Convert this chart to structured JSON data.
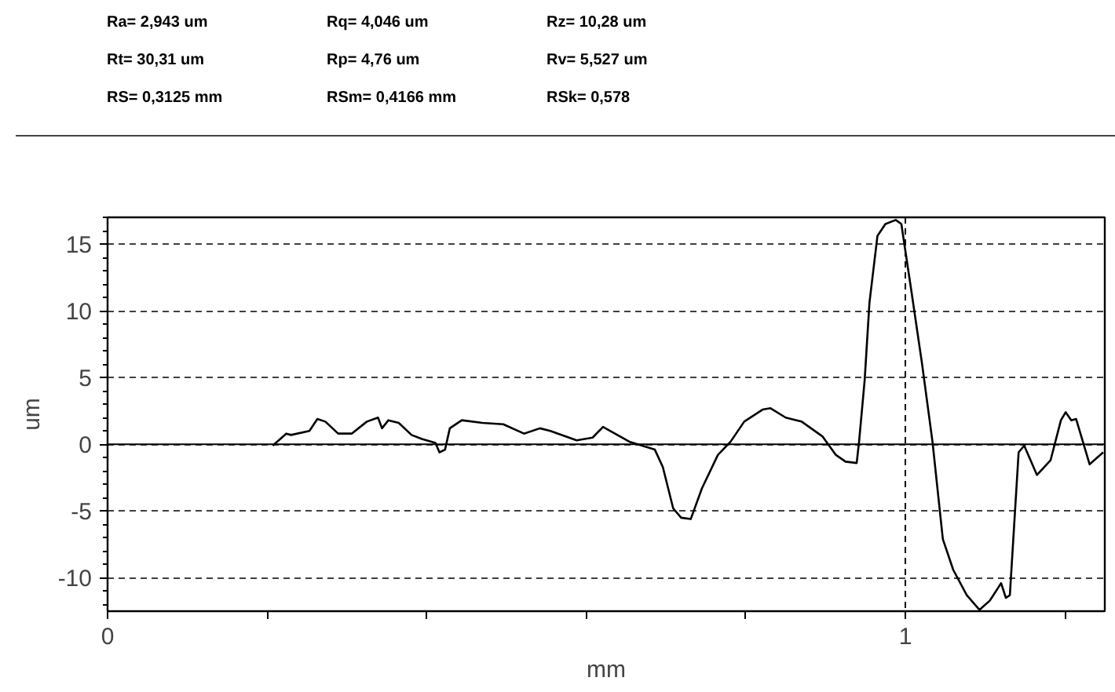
{
  "chart_data": {
    "type": "line",
    "annotations": [
      "Ra= 2,943 um",
      "Rq= 4,046 um",
      "Rz= 10,28 um",
      "Rt= 30,31 um",
      "Rp= 4,76 um",
      "Rv= 5,527 um",
      "RS= 0,3125  mm",
      "RSm= 0,4166  mm",
      "RSk= 0,578"
    ],
    "xlabel": "mm",
    "ylabel": "um",
    "xlim": [
      0,
      1.25
    ],
    "ylim": [
      -12.5,
      17
    ],
    "xticks": [
      0,
      {
        "value": 0.2,
        "label": null
      },
      {
        "value": 0.4,
        "label": null
      },
      {
        "value": 0.6,
        "label": null
      },
      {
        "value": 0.8,
        "label": null
      },
      1,
      {
        "value": 1.2,
        "label": null
      }
    ],
    "yticks": [
      -10,
      -5,
      0,
      5,
      10,
      15
    ],
    "grid": "y",
    "marker": "none",
    "line_style": "solid",
    "ref_lines": [
      {
        "axis": "y",
        "value": 0,
        "label": null,
        "color": "#000000",
        "line_style": "solid"
      },
      {
        "axis": "x",
        "value": 1,
        "label": null,
        "color": "#000000",
        "line_style": "dashed"
      }
    ],
    "series": [
      {
        "color": "#000000",
        "x": [
          0.207,
          0.224,
          0.23,
          0.253,
          0.263,
          0.273,
          0.289,
          0.306,
          0.325,
          0.339,
          0.344,
          0.352,
          0.365,
          0.381,
          0.394,
          0.411,
          0.416,
          0.423,
          0.429,
          0.444,
          0.47,
          0.496,
          0.522,
          0.542,
          0.555,
          0.588,
          0.608,
          0.621,
          0.654,
          0.686,
          0.696,
          0.709,
          0.719,
          0.731,
          0.745,
          0.765,
          0.781,
          0.798,
          0.821,
          0.831,
          0.85,
          0.87,
          0.896,
          0.913,
          0.925,
          0.939,
          0.942,
          0.949,
          0.955,
          0.965,
          0.975,
          0.988,
          0.995,
          1.008,
          1.021,
          1.034,
          1.047,
          1.06,
          1.077,
          1.093,
          1.106,
          1.12,
          1.126,
          1.131,
          1.142,
          1.149,
          1.165,
          1.182,
          1.195,
          1.201,
          1.208,
          1.214,
          1.231,
          1.248
        ],
        "values": [
          -0.1,
          0.8,
          0.7,
          1.0,
          1.9,
          1.7,
          0.8,
          0.8,
          1.7,
          2.0,
          1.2,
          1.8,
          1.6,
          0.7,
          0.4,
          0.1,
          -0.6,
          -0.4,
          1.2,
          1.8,
          1.6,
          1.5,
          0.8,
          1.2,
          1.0,
          0.3,
          0.5,
          1.3,
          0.2,
          -0.4,
          -1.7,
          -4.8,
          -5.5,
          -5.6,
          -3.3,
          -0.8,
          0.2,
          1.7,
          2.6,
          2.7,
          2.0,
          1.7,
          0.6,
          -0.8,
          -1.3,
          -1.4,
          0.2,
          4.8,
          10.6,
          15.6,
          16.5,
          16.8,
          16.5,
          11.3,
          6.0,
          0.2,
          -7.1,
          -9.4,
          -11.3,
          -12.4,
          -11.7,
          -10.4,
          -11.5,
          -11.3,
          -0.6,
          -0.1,
          -2.3,
          -1.2,
          1.8,
          2.4,
          1.8,
          1.9,
          -1.5,
          -0.6
        ]
      }
    ]
  }
}
